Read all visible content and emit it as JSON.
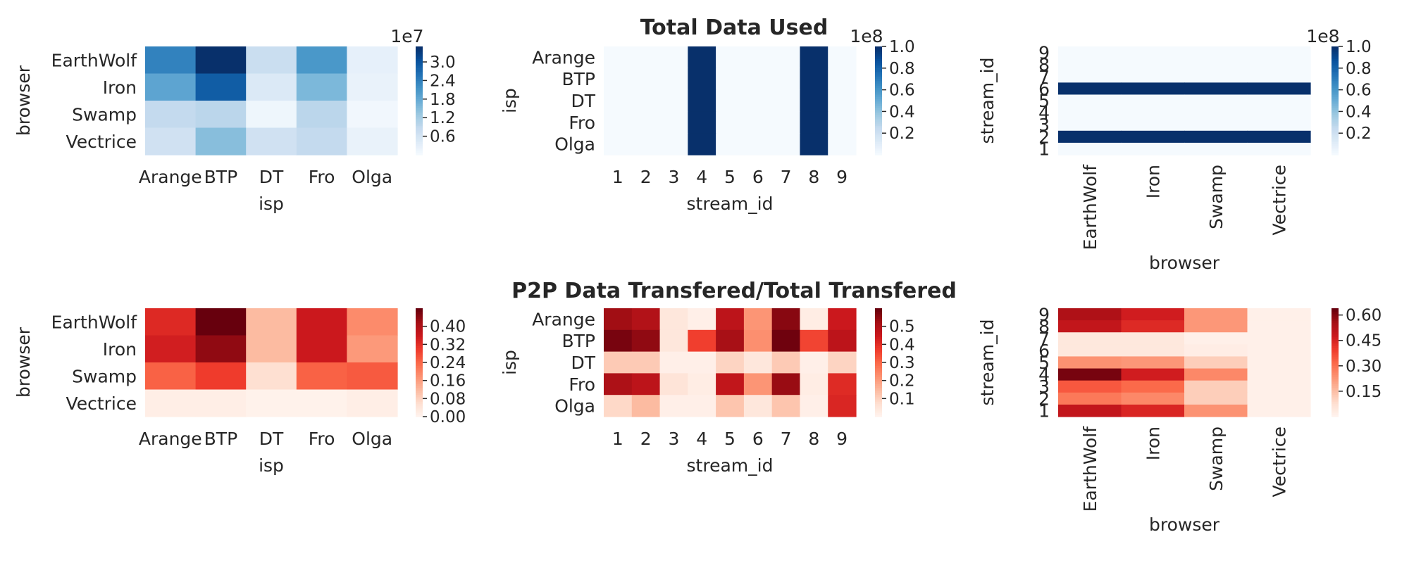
{
  "titles": {
    "top": "Total Data Used",
    "bottom": "P2P Data Transfered/Total Transfered"
  },
  "colormaps": {
    "blues": [
      "#f7fbff",
      "#deebf7",
      "#c6dbef",
      "#9ecae1",
      "#6baed6",
      "#4292c6",
      "#2171b5",
      "#08519c",
      "#08306b"
    ],
    "reds": [
      "#fff5f0",
      "#fee0d2",
      "#fcbba1",
      "#fc9272",
      "#fb6a4a",
      "#ef3b2c",
      "#cb181d",
      "#a50f15",
      "#67000d"
    ]
  },
  "chart_data": [
    {
      "type": "heatmap",
      "title": "",
      "xlabel": "isp",
      "ylabel": "browser",
      "x_categories": [
        "Arange",
        "BTP",
        "DT",
        "Fro",
        "Olga"
      ],
      "y_categories": [
        "EarthWolf",
        "Iron",
        "Swamp",
        "Vectrice"
      ],
      "values": [
        [
          24000000.0,
          35000000.0,
          8000000.0,
          21000000.0,
          3000000.0
        ],
        [
          19000000.0,
          29000000.0,
          5000000.0,
          16000000.0,
          2500000.0
        ],
        [
          9000000.0,
          10000000.0,
          1500000.0,
          10000000.0,
          1000000.0
        ],
        [
          7000000.0,
          15000000.0,
          7000000.0,
          9000000.0,
          2500000.0
        ]
      ],
      "vmin": 0,
      "vmax": 35000000.0,
      "colormap": "Blues",
      "colorbar_ticks": [
        0.6,
        1.2,
        1.8,
        2.4,
        3.0
      ],
      "colorbar_scale": 10000000.0,
      "colorbar_exponent_label": "1e7"
    },
    {
      "type": "heatmap",
      "title": "Total Data Used",
      "xlabel": "stream_id",
      "ylabel": "isp",
      "x_categories": [
        "1",
        "2",
        "3",
        "4",
        "5",
        "6",
        "7",
        "8",
        "9"
      ],
      "y_categories": [
        "Arange",
        "BTP",
        "DT",
        "Fro",
        "Olga"
      ],
      "values": [
        [
          1000000.0,
          1000000.0,
          1000000.0,
          100000000.0,
          1000000.0,
          1000000.0,
          1000000.0,
          100000000.0,
          1000000.0
        ],
        [
          1000000.0,
          1000000.0,
          1000000.0,
          100000000.0,
          1000000.0,
          1000000.0,
          1000000.0,
          100000000.0,
          1000000.0
        ],
        [
          1000000.0,
          1000000.0,
          1000000.0,
          100000000.0,
          1000000.0,
          1000000.0,
          1000000.0,
          100000000.0,
          1000000.0
        ],
        [
          1000000.0,
          1000000.0,
          1000000.0,
          100000000.0,
          1000000.0,
          1000000.0,
          1000000.0,
          100000000.0,
          1000000.0
        ],
        [
          1000000.0,
          1000000.0,
          1000000.0,
          100000000.0,
          1000000.0,
          1000000.0,
          1000000.0,
          100000000.0,
          1000000.0
        ]
      ],
      "vmin": 0,
      "vmax": 100000000.0,
      "colormap": "Blues",
      "colorbar_ticks": [
        0.2,
        0.4,
        0.6,
        0.8,
        1.0
      ],
      "colorbar_scale": 100000000.0,
      "colorbar_exponent_label": "1e8"
    },
    {
      "type": "heatmap",
      "title": "",
      "xlabel": "browser",
      "ylabel": "stream_id",
      "x_categories": [
        "EarthWolf",
        "Iron",
        "Swamp",
        "Vectrice"
      ],
      "y_categories": [
        "9",
        "8",
        "7",
        "6",
        "5",
        "4",
        "3",
        "2",
        "1"
      ],
      "values": [
        [
          1000000.0,
          1000000.0,
          1000000.0,
          1000000.0
        ],
        [
          1000000.0,
          1000000.0,
          1000000.0,
          1000000.0
        ],
        [
          1000000.0,
          1000000.0,
          1000000.0,
          1000000.0
        ],
        [
          100000000.0,
          100000000.0,
          100000000.0,
          100000000.0
        ],
        [
          1000000.0,
          1000000.0,
          1000000.0,
          1000000.0
        ],
        [
          1000000.0,
          1000000.0,
          1000000.0,
          1000000.0
        ],
        [
          1000000.0,
          1000000.0,
          1000000.0,
          1000000.0
        ],
        [
          100000000.0,
          100000000.0,
          100000000.0,
          100000000.0
        ],
        [
          1000000.0,
          1000000.0,
          1000000.0,
          1000000.0
        ]
      ],
      "vmin": 0,
      "vmax": 100000000.0,
      "colormap": "Blues",
      "colorbar_ticks": [
        0.2,
        0.4,
        0.6,
        0.8,
        1.0
      ],
      "colorbar_scale": 100000000.0,
      "colorbar_exponent_label": "1e8"
    },
    {
      "type": "heatmap",
      "title": "",
      "xlabel": "isp",
      "ylabel": "browser",
      "x_categories": [
        "Arange",
        "BTP",
        "DT",
        "Fro",
        "Olga"
      ],
      "y_categories": [
        "EarthWolf",
        "Iron",
        "Swamp",
        "Vectrice"
      ],
      "values": [
        [
          0.33,
          0.48,
          0.12,
          0.36,
          0.19
        ],
        [
          0.35,
          0.44,
          0.12,
          0.36,
          0.17
        ],
        [
          0.25,
          0.3,
          0.06,
          0.25,
          0.26
        ],
        [
          0.02,
          0.02,
          0.01,
          0.01,
          0.02
        ]
      ],
      "vmin": 0,
      "vmax": 0.48,
      "colormap": "Reds",
      "colorbar_ticks": [
        0.0,
        0.08,
        0.16,
        0.24,
        0.32,
        0.4
      ],
      "colorbar_scale": 1
    },
    {
      "type": "heatmap",
      "title": "P2P Data Transfered/Total Transfered",
      "xlabel": "stream_id",
      "ylabel": "isp",
      "x_categories": [
        "1",
        "2",
        "3",
        "4",
        "5",
        "6",
        "7",
        "8",
        "9"
      ],
      "y_categories": [
        "Arange",
        "BTP",
        "DT",
        "Fro",
        "Olga"
      ],
      "values": [
        [
          0.53,
          0.5,
          0.05,
          0.02,
          0.48,
          0.22,
          0.56,
          0.03,
          0.45
        ],
        [
          0.58,
          0.55,
          0.05,
          0.37,
          0.52,
          0.23,
          0.59,
          0.36,
          0.48
        ],
        [
          0.12,
          0.12,
          0.02,
          0.02,
          0.1,
          0.05,
          0.12,
          0.02,
          0.1
        ],
        [
          0.51,
          0.48,
          0.06,
          0.03,
          0.47,
          0.22,
          0.54,
          0.03,
          0.41
        ],
        [
          0.09,
          0.15,
          0.02,
          0.02,
          0.13,
          0.05,
          0.13,
          0.02,
          0.42
        ]
      ],
      "vmin": 0,
      "vmax": 0.6,
      "colormap": "Reds",
      "colorbar_ticks": [
        0.1,
        0.2,
        0.3,
        0.4,
        0.5
      ],
      "colorbar_scale": 1
    },
    {
      "type": "heatmap",
      "title": "",
      "xlabel": "browser",
      "ylabel": "stream_id",
      "x_categories": [
        "EarthWolf",
        "Iron",
        "Swamp",
        "Vectrice"
      ],
      "y_categories": [
        "9",
        "8",
        "7",
        "6",
        "5",
        "4",
        "3",
        "2",
        "1"
      ],
      "values": [
        [
          0.54,
          0.47,
          0.23,
          0.02
        ],
        [
          0.5,
          0.44,
          0.23,
          0.02
        ],
        [
          0.05,
          0.05,
          0.02,
          0.02
        ],
        [
          0.05,
          0.05,
          0.03,
          0.02
        ],
        [
          0.24,
          0.23,
          0.12,
          0.02
        ],
        [
          0.62,
          0.47,
          0.26,
          0.02
        ],
        [
          0.35,
          0.32,
          0.12,
          0.02
        ],
        [
          0.29,
          0.26,
          0.12,
          0.02
        ],
        [
          0.5,
          0.45,
          0.24,
          0.02
        ]
      ],
      "vmin": 0,
      "vmax": 0.64,
      "colormap": "Reds",
      "colorbar_ticks": [
        0.15,
        0.3,
        0.45,
        0.6
      ],
      "colorbar_scale": 1
    }
  ]
}
